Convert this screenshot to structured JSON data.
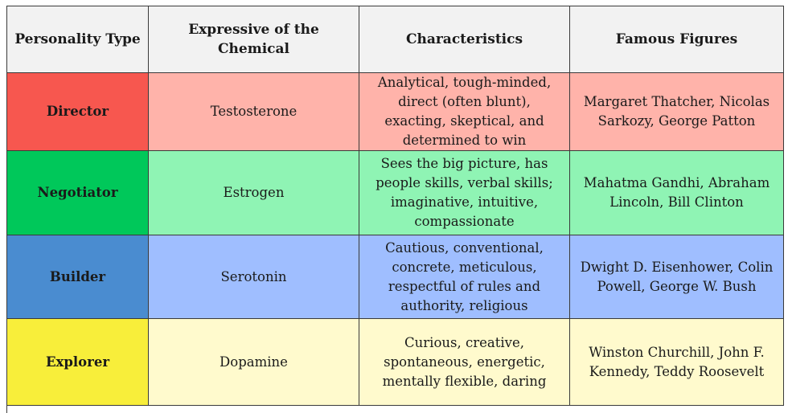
{
  "headers": [
    "Personality Type",
    "Expressive of the Chemical",
    "Characteristics",
    "Famous Figures"
  ],
  "rows": [
    {
      "type": "Director",
      "chemical": "Testosterone",
      "characteristics": "Analytical, tough-minded, direct (often blunt), exacting, skeptical, and determined to win",
      "figures": "Margaret Thatcher, Nicolas Sarkozy, George Patton",
      "type_color": "#f7574f",
      "row_color": "#ffb3aa"
    },
    {
      "type": "Negotiator",
      "chemical": "Estrogen",
      "characteristics": "Sees the big picture, has people skills, verbal skills; imaginative, intuitive, compassionate",
      "figures": "Mahatma Gandhi, Abraham Lincoln, Bill Clinton",
      "type_color": "#00c85a",
      "row_color": "#8ff4b4"
    },
    {
      "type": "Builder",
      "chemical": "Serotonin",
      "characteristics": "Cautious, conventional, concrete, meticulous, respectful of rules and authority, religious",
      "figures": "Dwight D. Eisenhower, Colin Powell, George W. Bush",
      "type_color": "#4a8cd0",
      "row_color": "#9fbeff"
    },
    {
      "type": "Explorer",
      "chemical": "Dopamine",
      "characteristics": "Curious, creative, spontaneous, energetic, mentally flexible, daring",
      "figures": "Winston Churchill, John F. Kennedy, Teddy Roosevelt",
      "type_color": "#f8ee3a",
      "row_color": "#fffacd"
    }
  ]
}
